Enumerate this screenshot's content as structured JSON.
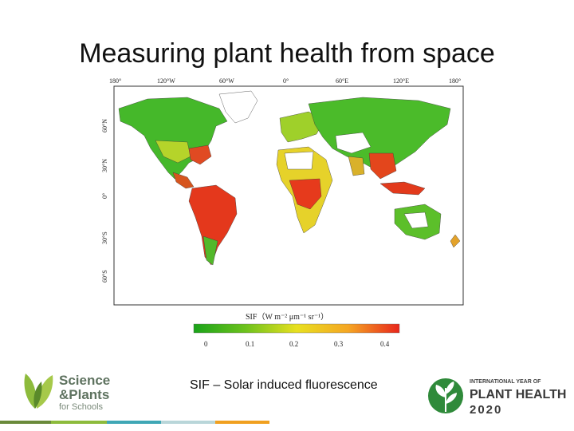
{
  "slide": {
    "title": "Measuring plant health from space",
    "caption": "SIF – Solar induced fluorescence"
  },
  "map": {
    "top_ticks": [
      "180°",
      "120°W",
      "60°W",
      "0°",
      "60°E",
      "120°E",
      "180°"
    ],
    "left_ticks": [
      "60°N",
      "30°N",
      "0°",
      "30°S",
      "60°S"
    ],
    "colorbar": {
      "label": "SIF（W m⁻² μm⁻¹ sr⁻¹）",
      "ticks": [
        "0",
        "0.1",
        "0.2",
        "0.3",
        "0.4"
      ],
      "range": [
        0,
        0.4
      ],
      "colors": [
        "#1aa31a",
        "#6cc21c",
        "#e8e020",
        "#f5a623",
        "#e8261c"
      ]
    }
  },
  "logos": {
    "left": {
      "line1": "Science",
      "line2": "&Plants",
      "line3": "for Schools"
    },
    "right": {
      "line1": "INTERNATIONAL YEAR OF",
      "line2": "PLANT HEALTH",
      "line3": "2020"
    }
  },
  "footer_colors": [
    "#6a8a3a",
    "#8dbb3c",
    "#3fa7b5",
    "#b9d6d9",
    "#f0a020"
  ]
}
